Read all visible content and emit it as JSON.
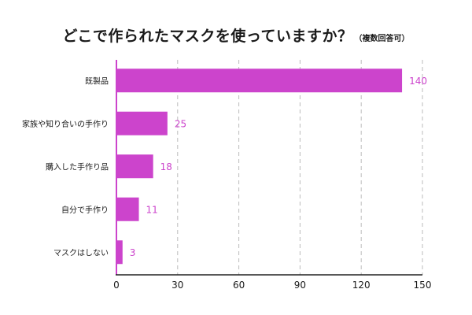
{
  "chart_data": {
    "type": "bar",
    "orientation": "horizontal",
    "title": "どこで作られたマスクを使っていますか？",
    "subtitle": "（複数回答可）",
    "categories": [
      "既製品",
      "家族や知り合いの手作り",
      "購入した手作り品",
      "自分で手作り",
      "マスクはしない"
    ],
    "values": [
      140,
      25,
      18,
      11,
      3
    ],
    "xlim": [
      0,
      150
    ],
    "xticks": [
      0,
      30,
      60,
      90,
      120,
      150
    ],
    "xlabel": "",
    "ylabel": "",
    "grid": "vertical dashed",
    "legend": "none",
    "colors": {
      "bar": "#cc44cc",
      "label": "#cc44cc",
      "axis": "#cc44cc",
      "grid": "#bbbbbb",
      "text": "#1a1a1a"
    }
  }
}
